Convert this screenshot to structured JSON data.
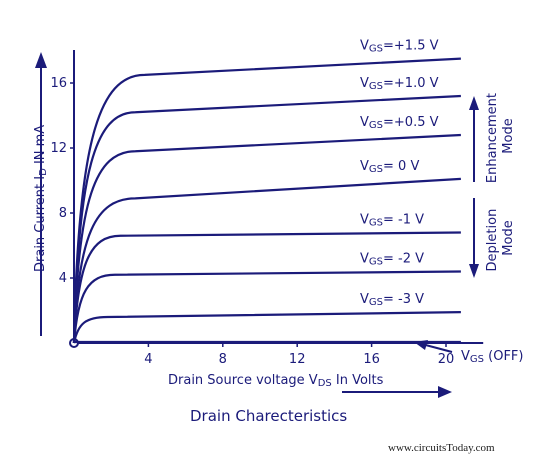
{
  "chart_data": {
    "type": "line",
    "title": "Drain Charecteristics",
    "xlabel": "Drain Source voltage VDS In Volts",
    "xlabel_parts": {
      "pre": "Drain Source voltage V",
      "sub": "DS",
      "post": " In Volts"
    },
    "ylabel": "Drain Current ID IN mA",
    "ylabel_parts": {
      "pre": "Drain Current I",
      "sub": "D",
      "post": " IN mA"
    },
    "xlim": [
      0,
      22
    ],
    "ylim": [
      0,
      17.5
    ],
    "x_ticks": [
      4,
      8,
      12,
      16,
      20
    ],
    "y_ticks": [
      4,
      8,
      12,
      16
    ],
    "grid": false,
    "series": [
      {
        "name": "VGS=+1.5 V",
        "label": {
          "pre": "V",
          "sub": "GS",
          "post": "=+1.5 V"
        },
        "sat_x": 3.8,
        "y_sat": 16.5,
        "y_end": 17.5
      },
      {
        "name": "VGS=+1.0 V",
        "label": {
          "pre": "V",
          "sub": "GS",
          "post": "=+1.0 V"
        },
        "sat_x": 3.3,
        "y_sat": 14.2,
        "y_end": 15.2
      },
      {
        "name": "VGS=+0.5 V",
        "label": {
          "pre": "V",
          "sub": "GS",
          "post": "=+0.5 V"
        },
        "sat_x": 3.3,
        "y_sat": 11.8,
        "y_end": 12.8
      },
      {
        "name": "VGS= 0 V",
        "label": {
          "pre": "V",
          "sub": "GS",
          "post": "= 0 V"
        },
        "sat_x": 3.3,
        "y_sat": 8.9,
        "y_end": 10.1
      },
      {
        "name": "VGS= -1 V",
        "label": {
          "pre": "V",
          "sub": "GS",
          "post": "= -1 V"
        },
        "sat_x": 2.5,
        "y_sat": 6.6,
        "y_end": 6.8
      },
      {
        "name": "VGS= -2 V",
        "label": {
          "pre": "V",
          "sub": "GS",
          "post": "= -2 V"
        },
        "sat_x": 2.2,
        "y_sat": 4.2,
        "y_end": 4.4
      },
      {
        "name": "VGS= -3 V",
        "label": {
          "pre": "V",
          "sub": "GS",
          "post": "= -3 V"
        },
        "sat_x": 1.8,
        "y_sat": 1.6,
        "y_end": 1.9
      },
      {
        "name": "VGS (OFF)",
        "label": {
          "pre": "V",
          "sub": "GS",
          "post": " (OFF)"
        },
        "sat_x": 0,
        "y_sat": 0,
        "y_end": 0
      }
    ],
    "annotations": {
      "enhancement": [
        "Enhancement",
        "Mode"
      ],
      "depletion": [
        "Depletion",
        "Mode"
      ]
    }
  },
  "footer": {
    "website": "www.circuitsToday.com"
  },
  "colors": {
    "ink": "#1b1b7a",
    "background": "#ffffff"
  }
}
